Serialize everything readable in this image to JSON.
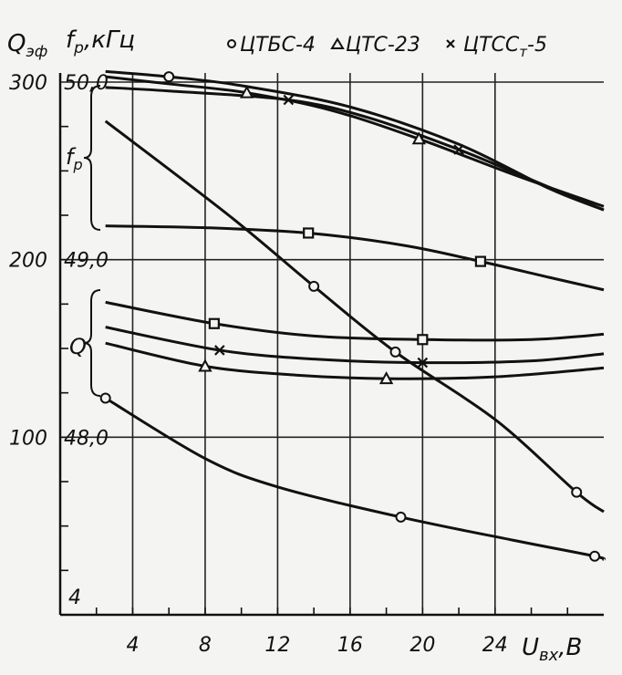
{
  "chart_data": {
    "type": "line",
    "title": "",
    "y_label_left": "Q",
    "y_label_left_sub": "эф",
    "y_label_freq": "f",
    "y_label_freq_sub": "р",
    "y_label_freq_unit": ",кГц",
    "xlabel": "U",
    "xlabel_sub": "вх",
    "xlabel_unit": ",В",
    "xlim": [
      0,
      30
    ],
    "x_ticks": [
      4,
      8,
      12,
      16,
      20,
      24
    ],
    "x_tick_labels": [
      "4",
      "8",
      "12",
      "16",
      "20",
      "24"
    ],
    "q_scale_ticks": [
      {
        "value": 300,
        "label": "300"
      },
      {
        "value": 200,
        "label": "200"
      },
      {
        "value": 100,
        "label": "100"
      },
      {
        "value": 0,
        "label": "4"
      }
    ],
    "f_scale_ticks": [
      {
        "value": 50.0,
        "label": "50,0"
      },
      {
        "value": 49.0,
        "label": "49,0"
      },
      {
        "value": 48.0,
        "label": "48,0"
      }
    ],
    "brace_labels": {
      "fr": "f",
      "fr_sub": "р",
      "q": "Q"
    },
    "legend": [
      {
        "marker": "circle",
        "label": "ЦТБС-4"
      },
      {
        "marker": "triangle",
        "label": "ЦТС-23"
      },
      {
        "marker": "cross",
        "label": "ЦТСС",
        "label_sub": "т",
        "label_tail": "-5"
      }
    ],
    "grid": true,
    "legend_position": "top",
    "series": [
      {
        "group": "fr",
        "marker": "circle",
        "x": [
          2.5,
          6,
          10,
          16,
          22,
          27,
          30
        ],
        "y": [
          306,
          303,
          298,
          286,
          265,
          240,
          228
        ]
      },
      {
        "group": "fr",
        "marker": "triangle",
        "x": [
          2.5,
          6,
          10.3,
          15,
          19.8,
          25,
          30
        ],
        "y": [
          303,
          299,
          294,
          284,
          268,
          248,
          230
        ]
      },
      {
        "group": "fr",
        "marker": "cross",
        "x": [
          2.5,
          6,
          12.6,
          17,
          22,
          26,
          30
        ],
        "y": [
          297,
          295,
          290,
          280,
          262,
          245,
          228
        ]
      },
      {
        "group": "fr",
        "marker": "square",
        "x": [
          2.5,
          8,
          13.7,
          19,
          23.2,
          27,
          30
        ],
        "y": [
          219,
          218,
          215,
          208,
          199,
          190,
          183
        ]
      },
      {
        "group": "fr",
        "marker": "circle",
        "x": [
          2.5,
          9.3,
          14,
          18.5,
          24,
          28.5,
          30
        ],
        "y": [
          278,
          225,
          185,
          148,
          110,
          69,
          58
        ]
      },
      {
        "group": "q",
        "marker": "square",
        "x": [
          2.5,
          8.5,
          14,
          20,
          26,
          30
        ],
        "y": [
          176,
          164,
          157,
          155,
          155,
          158
        ]
      },
      {
        "group": "q",
        "marker": "cross",
        "x": [
          2.5,
          8.8,
          14,
          20,
          26,
          30
        ],
        "y": [
          162,
          149,
          144,
          142,
          143,
          147
        ]
      },
      {
        "group": "q",
        "marker": "triangle",
        "x": [
          2.5,
          8,
          13,
          18,
          24,
          30
        ],
        "y": [
          153,
          140,
          135,
          133,
          134,
          139
        ]
      },
      {
        "group": "q",
        "marker": "circle",
        "x": [
          2.5,
          8,
          12,
          18.8,
          25,
          29.5,
          30
        ],
        "y": [
          122,
          88,
          72,
          55,
          42,
          33,
          31
        ]
      }
    ]
  }
}
